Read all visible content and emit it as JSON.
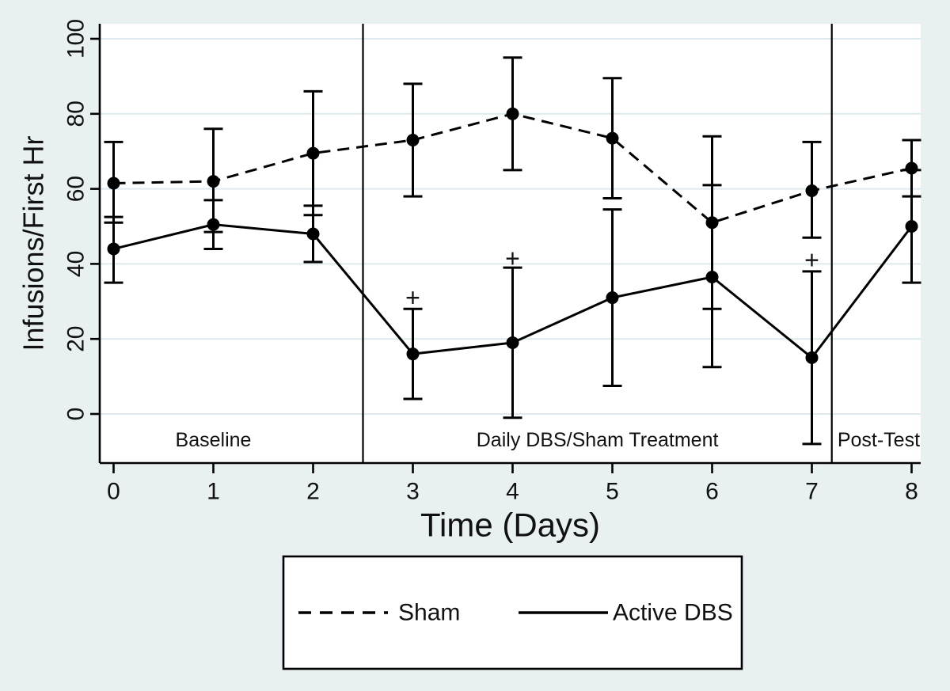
{
  "figure": {
    "background_color": "#e9f0f2",
    "plot_background_color": "#ffffff",
    "grid_color": "#dde9ec",
    "line_color": "#000000",
    "text_color": "#111111"
  },
  "chart_data": {
    "type": "line",
    "title": "",
    "xlabel": "Time (Days)",
    "ylabel": "Infusions/First Hr",
    "x_ticks": [
      "0",
      "1",
      "2",
      "3",
      "4",
      "5",
      "6",
      "7",
      "8"
    ],
    "y_ticks": [
      "0",
      "20",
      "40",
      "60",
      "80",
      "100"
    ],
    "y_tick_values": [
      0,
      20,
      40,
      60,
      80,
      100
    ],
    "ylim": [
      -13,
      104
    ],
    "xlim": [
      -0.14,
      8.1
    ],
    "grid": true,
    "x": [
      0,
      1,
      2,
      3,
      4,
      5,
      6,
      7,
      8
    ],
    "series": [
      {
        "name": "Sham",
        "line_style": "dashed",
        "marker": "filled-circle",
        "values": [
          61.5,
          62,
          69.5,
          73,
          80,
          73.5,
          51,
          59.5,
          65.5
        ],
        "err_low": [
          51,
          48.5,
          53,
          58,
          65,
          57.5,
          28,
          47,
          58
        ],
        "err_high": [
          72.5,
          76,
          86,
          88,
          95,
          89.5,
          74,
          72.5,
          73
        ]
      },
      {
        "name": "Active DBS",
        "line_style": "solid",
        "marker": "filled-circle",
        "values": [
          44,
          50.5,
          48,
          16,
          19,
          31,
          36.5,
          15,
          50
        ],
        "err_low": [
          35,
          44,
          40.5,
          4,
          -1,
          7.5,
          12.5,
          -8,
          35
        ],
        "err_high": [
          52.5,
          57,
          55.5,
          28,
          39,
          54.5,
          61,
          38,
          65
        ]
      }
    ],
    "significance_markers": {
      "symbol": "+",
      "applies_to_series": "Active DBS",
      "points": [
        {
          "x": 3,
          "y": 31
        },
        {
          "x": 4,
          "y": 41.5
        },
        {
          "x": 7,
          "y": 41
        }
      ]
    },
    "reference_lines_x": [
      2.5,
      7.2
    ],
    "phase_labels": [
      {
        "text": "Baseline",
        "x": 1.0,
        "y": -7
      },
      {
        "text": "Daily DBS/Sham Treatment",
        "x": 4.85,
        "y": -7
      },
      {
        "text": "Post-Test",
        "x": 7.67,
        "y": -7
      }
    ],
    "legend": {
      "position": "bottom",
      "entries": [
        {
          "label": "Sham",
          "style": "dashed"
        },
        {
          "label": "Active DBS",
          "style": "solid"
        }
      ]
    }
  }
}
